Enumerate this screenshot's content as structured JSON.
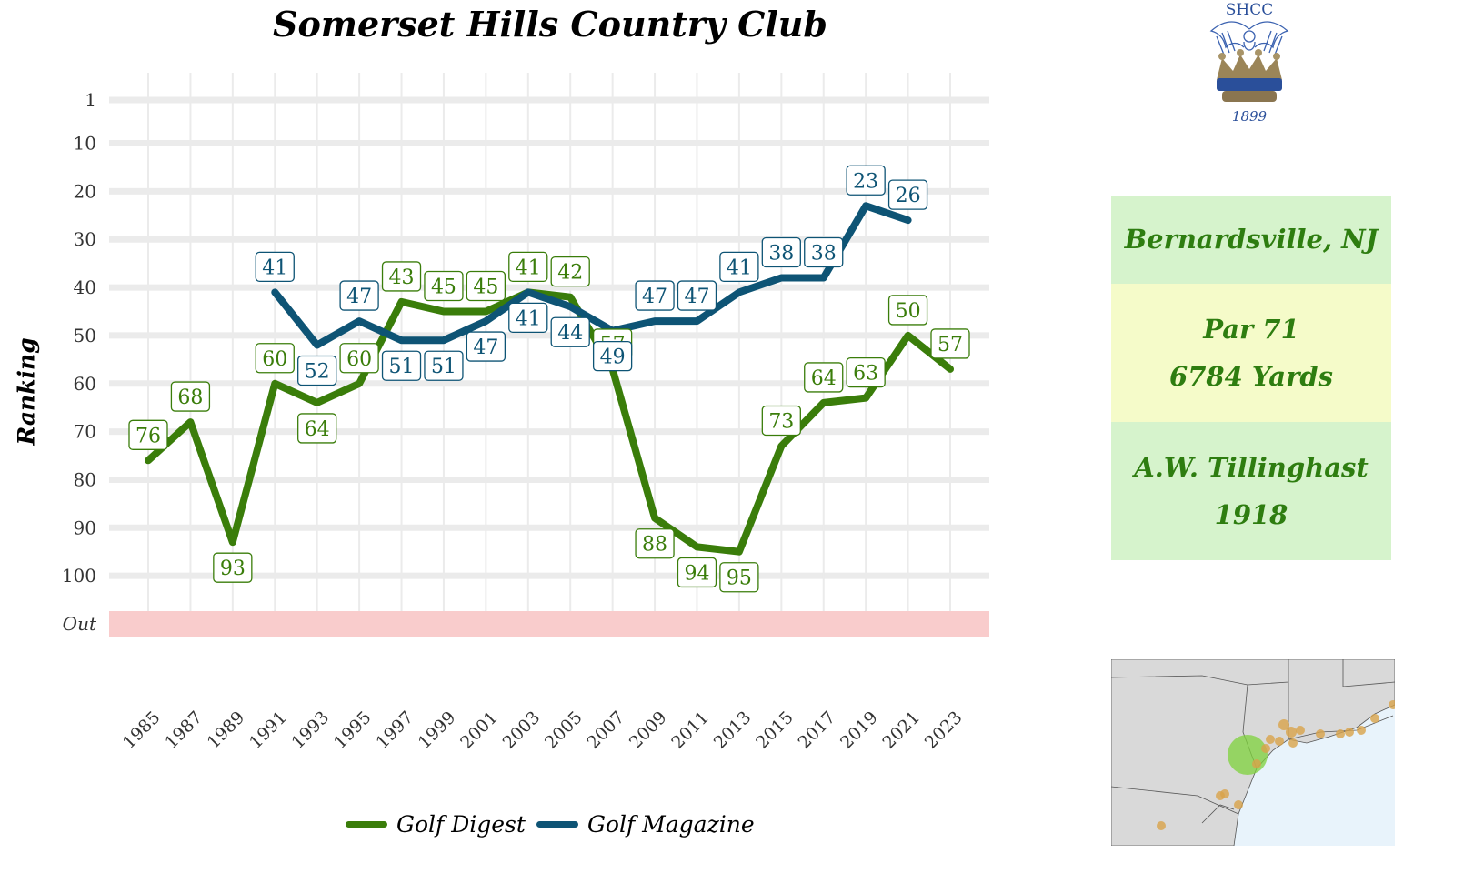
{
  "chart_data": {
    "type": "line",
    "title": "Somerset Hills Country Club",
    "ylabel": "Ranking",
    "xlabel": "",
    "x": [
      1985,
      1987,
      1989,
      1991,
      1993,
      1995,
      1997,
      1999,
      2001,
      2003,
      2005,
      2007,
      2009,
      2011,
      2013,
      2015,
      2017,
      2019,
      2021,
      2023
    ],
    "x_tick_labels": [
      "1985",
      "1987",
      "1989",
      "1991",
      "1993",
      "1995",
      "1997",
      "1999",
      "2001",
      "2003",
      "2005",
      "2007",
      "2009",
      "2011",
      "2013",
      "2015",
      "2017",
      "2019",
      "2021",
      "2023"
    ],
    "y_tick_labels": [
      "1",
      "10",
      "20",
      "30",
      "40",
      "50",
      "60",
      "70",
      "80",
      "90",
      "100",
      "Out"
    ],
    "y_tick_values": [
      1,
      10,
      20,
      30,
      40,
      50,
      60,
      70,
      80,
      90,
      100,
      110
    ],
    "y_reversed": true,
    "out_band_label": "Out",
    "ylim": [
      1,
      110
    ],
    "grid": true,
    "legend_position": "bottom",
    "series": [
      {
        "name": "Golf Digest",
        "color": "#3a7d0a",
        "points": [
          {
            "x": 1985,
            "y": 76
          },
          {
            "x": 1987,
            "y": 68
          },
          {
            "x": 1989,
            "y": 93
          },
          {
            "x": 1991,
            "y": 60
          },
          {
            "x": 1993,
            "y": 64
          },
          {
            "x": 1995,
            "y": 60
          },
          {
            "x": 1997,
            "y": 43
          },
          {
            "x": 1999,
            "y": 45
          },
          {
            "x": 2001,
            "y": 45
          },
          {
            "x": 2003,
            "y": 41
          },
          {
            "x": 2005,
            "y": 42
          },
          {
            "x": 2007,
            "y": 57
          },
          {
            "x": 2009,
            "y": 88
          },
          {
            "x": 2011,
            "y": 94
          },
          {
            "x": 2013,
            "y": 95
          },
          {
            "x": 2015,
            "y": 73
          },
          {
            "x": 2017,
            "y": 64
          },
          {
            "x": 2019,
            "y": 63
          },
          {
            "x": 2021,
            "y": 50
          },
          {
            "x": 2023,
            "y": 57
          }
        ]
      },
      {
        "name": "Golf Magazine",
        "color": "#0e5475",
        "points": [
          {
            "x": 1991,
            "y": 41
          },
          {
            "x": 1993,
            "y": 52
          },
          {
            "x": 1995,
            "y": 47
          },
          {
            "x": 1997,
            "y": 51
          },
          {
            "x": 1999,
            "y": 51
          },
          {
            "x": 2001,
            "y": 47
          },
          {
            "x": 2003,
            "y": 41
          },
          {
            "x": 2005,
            "y": 44
          },
          {
            "x": 2007,
            "y": 49
          },
          {
            "x": 2009,
            "y": 47
          },
          {
            "x": 2011,
            "y": 47
          },
          {
            "x": 2013,
            "y": 41
          },
          {
            "x": 2015,
            "y": 38
          },
          {
            "x": 2017,
            "y": 38
          },
          {
            "x": 2019,
            "y": 23
          },
          {
            "x": 2021,
            "y": 26
          }
        ]
      }
    ]
  },
  "legend": {
    "golf_digest": "Golf Digest",
    "golf_magazine": "Golf Magazine"
  },
  "logo": {
    "abbreviation": "SHCC",
    "year": "1899"
  },
  "info": {
    "location": "Bernardsville, NJ",
    "par": "Par 71",
    "yards": "6784 Yards",
    "architect": "A.W. Tillinghast",
    "year_built": "1918"
  },
  "map": {
    "land_color": "#d9d9d9",
    "water_color": "#e8f3fb",
    "highlight_color": "#7dd23b",
    "marker_color": "#d8a24a"
  }
}
